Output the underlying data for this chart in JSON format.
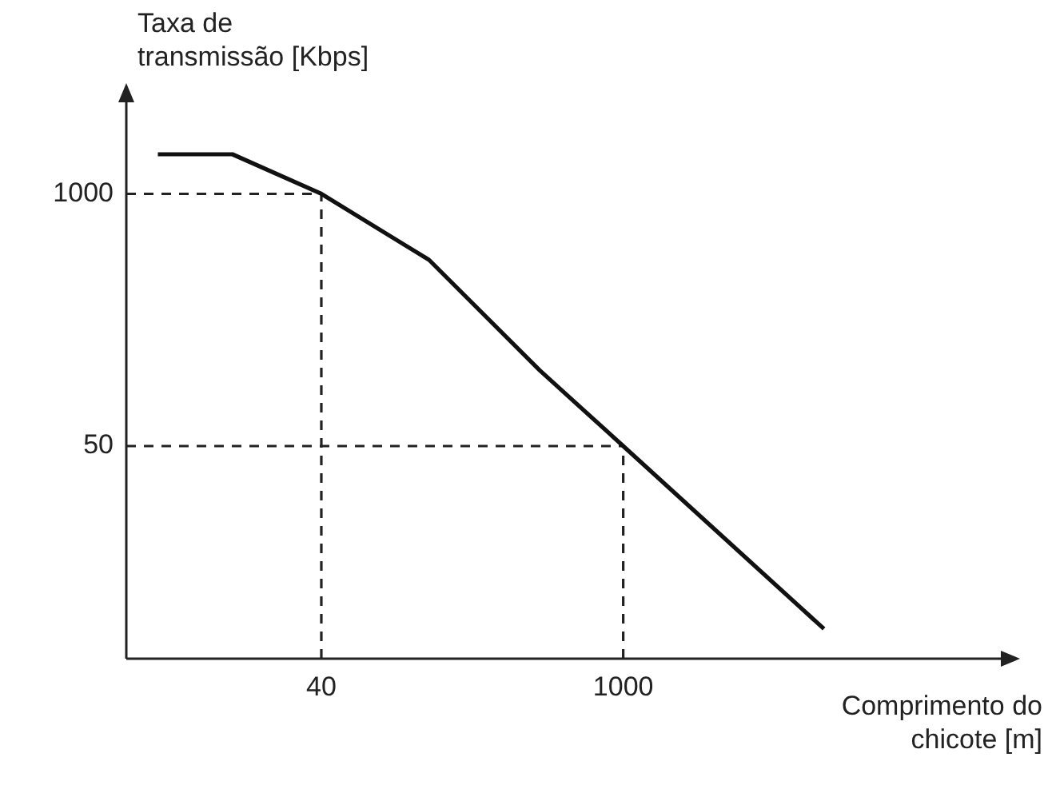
{
  "chart_data": {
    "type": "line",
    "xlabel": "Comprimento do chicote [m]",
    "ylabel": "Taxa de transmissão [Kbps]",
    "x": [
      7,
      15.5,
      40,
      126,
      410,
      1000,
      8500
    ],
    "values": [
      1600,
      1600,
      1000,
      457,
      123,
      50,
      5.7
    ],
    "color": "#111111",
    "log": "xy",
    "xlim": [
      5,
      60000
    ],
    "ylim": [
      4,
      3200
    ],
    "xticks": [
      40,
      1000
    ],
    "yticks": [
      50,
      1000
    ],
    "grid": false,
    "legend": false,
    "marker": "none",
    "line_style": "solid",
    "ref_lines": [
      {
        "axis": "x",
        "value": 40,
        "color": "#222222",
        "line_style": "dashed"
      },
      {
        "axis": "x",
        "value": 1000,
        "color": "#222222",
        "line_style": "dashed"
      },
      {
        "axis": "y",
        "value": 1000,
        "color": "#222222",
        "line_style": "dashed"
      },
      {
        "axis": "y",
        "value": 50,
        "color": "#222222",
        "line_style": "dashed"
      }
    ]
  }
}
